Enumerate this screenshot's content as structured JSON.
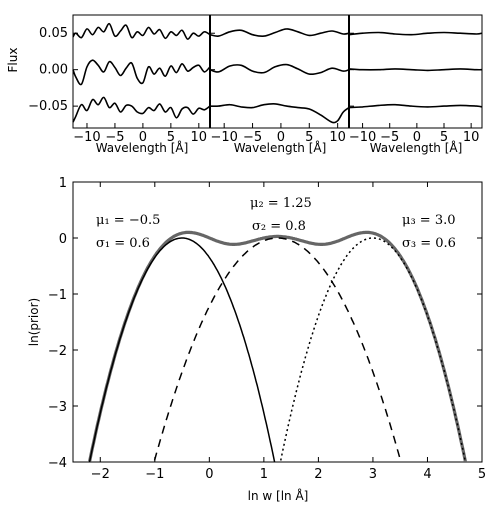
{
  "chart_data": [
    {
      "type": "line",
      "layout": "three-panels-shared-y",
      "ylabel": "Flux",
      "ylim": [
        -0.08,
        0.075
      ],
      "yticks": [
        0.05,
        0.0,
        -0.05
      ],
      "ytick_labels": [
        "0.05",
        "0.00",
        "−0.05"
      ],
      "xlim": [
        -12.5,
        12
      ],
      "xticks": [
        -10,
        -5,
        0,
        5,
        10
      ],
      "xtick_labels": [
        "−10",
        "−5",
        "0",
        "5",
        "10"
      ],
      "xlabel": "Wavelength [Å]",
      "panels": [
        {
          "series": [
            {
              "offset": 0.05,
              "x": [
                -12.5,
                -12,
                -11,
                -10,
                -9,
                -8,
                -7,
                -6,
                -5,
                -4,
                -3,
                -2,
                -1,
                0,
                1,
                2,
                3,
                4,
                5,
                6,
                7,
                8,
                9,
                10,
                11,
                12
              ],
              "y": [
                0.045,
                0.05,
                0.044,
                0.056,
                0.048,
                0.058,
                0.052,
                0.063,
                0.046,
                0.053,
                0.061,
                0.044,
                0.052,
                0.047,
                0.058,
                0.049,
                0.055,
                0.043,
                0.052,
                0.047,
                0.054,
                0.042,
                0.05,
                0.046,
                0.052,
                0.048
              ]
            },
            {
              "offset": 0.0,
              "x": [
                -12.5,
                -12,
                -11,
                -10,
                -9,
                -8,
                -7,
                -6,
                -5,
                -4,
                -3,
                -2,
                -1,
                0,
                1,
                2,
                3,
                4,
                5,
                6,
                7,
                8,
                9,
                10,
                11,
                12
              ],
              "y": [
                0.0,
                -0.01,
                -0.02,
                0.004,
                0.013,
                0.006,
                -0.003,
                0.011,
                0.003,
                -0.008,
                0.002,
                0.009,
                -0.012,
                -0.018,
                0.004,
                -0.006,
                0.002,
                -0.009,
                0.005,
                -0.004,
                0.008,
                -0.002,
                0.003,
                0.006,
                -0.003,
                0.004
              ]
            },
            {
              "offset": -0.05,
              "x": [
                -12.5,
                -12,
                -11,
                -10,
                -9,
                -8,
                -7,
                -6,
                -5,
                -4,
                -3,
                -2,
                -1,
                0,
                1,
                2,
                3,
                4,
                5,
                6,
                7,
                8,
                9,
                10,
                11,
                12
              ],
              "y": [
                -0.072,
                -0.064,
                -0.048,
                -0.056,
                -0.041,
                -0.048,
                -0.038,
                -0.052,
                -0.046,
                -0.058,
                -0.049,
                -0.05,
                -0.058,
                -0.06,
                -0.052,
                -0.056,
                -0.047,
                -0.058,
                -0.052,
                -0.066,
                -0.054,
                -0.052,
                -0.061,
                -0.053,
                -0.055,
                -0.05
              ]
            }
          ]
        },
        {
          "series": [
            {
              "offset": 0.05,
              "x": [
                -12.5,
                -11,
                -9,
                -7,
                -5,
                -3,
                -1,
                1,
                3,
                5,
                7,
                9,
                11,
                12
              ],
              "y": [
                0.048,
                0.046,
                0.052,
                0.054,
                0.048,
                0.046,
                0.051,
                0.056,
                0.052,
                0.047,
                0.05,
                0.053,
                0.049,
                0.05
              ]
            },
            {
              "offset": 0.0,
              "x": [
                -12.5,
                -11,
                -9,
                -7,
                -5,
                -3,
                -1,
                1,
                3,
                5,
                7,
                9,
                11,
                12
              ],
              "y": [
                0.0,
                -0.003,
                0.005,
                0.006,
                -0.002,
                -0.004,
                0.004,
                0.007,
                0.001,
                -0.006,
                -0.004,
                0.002,
                -0.002,
                0.0
              ]
            },
            {
              "offset": -0.05,
              "x": [
                -12.5,
                -11,
                -9,
                -7,
                -5,
                -3,
                -1,
                1,
                3,
                5,
                7,
                9,
                10,
                11,
                12
              ],
              "y": [
                -0.05,
                -0.05,
                -0.048,
                -0.051,
                -0.052,
                -0.048,
                -0.047,
                -0.05,
                -0.052,
                -0.054,
                -0.062,
                -0.072,
                -0.07,
                -0.058,
                -0.052
              ]
            }
          ]
        },
        {
          "series": [
            {
              "offset": 0.05,
              "x": [
                -12.5,
                -10,
                -7,
                -4,
                -1,
                2,
                5,
                8,
                11,
                12
              ],
              "y": [
                0.048,
                0.05,
                0.051,
                0.049,
                0.048,
                0.05,
                0.051,
                0.05,
                0.049,
                0.05
              ]
            },
            {
              "offset": 0.0,
              "x": [
                -12.5,
                -10,
                -7,
                -4,
                -1,
                2,
                5,
                8,
                11,
                12
              ],
              "y": [
                0.001,
                0.0,
                0.0,
                0.001,
                0.0,
                -0.001,
                0.0,
                0.001,
                0.0,
                0.0
              ]
            },
            {
              "offset": -0.05,
              "x": [
                -12.5,
                -10,
                -7,
                -4,
                -1,
                2,
                5,
                8,
                11,
                12
              ],
              "y": [
                -0.052,
                -0.051,
                -0.049,
                -0.048,
                -0.05,
                -0.051,
                -0.05,
                -0.049,
                -0.05,
                -0.051
              ]
            }
          ]
        }
      ]
    },
    {
      "type": "line",
      "xlabel": "ln w [ln Å]",
      "ylabel": "ln(prior)",
      "xlim": [
        -2.5,
        5
      ],
      "ylim": [
        -4,
        1
      ],
      "xticks": [
        -2,
        -1,
        0,
        1,
        2,
        3,
        4,
        5
      ],
      "xtick_labels": [
        "−2",
        "−1",
        "0",
        "1",
        "2",
        "3",
        "4",
        "5"
      ],
      "yticks": [
        1,
        0,
        -1,
        -2,
        -3,
        -4
      ],
      "ytick_labels": [
        "1",
        "0",
        "−1",
        "−2",
        "−3",
        "−4"
      ],
      "components": [
        {
          "mu": -0.5,
          "sigma": 0.6,
          "style": "solid"
        },
        {
          "mu": 1.25,
          "sigma": 0.8,
          "style": "dashed"
        },
        {
          "mu": 3.0,
          "sigma": 0.6,
          "style": "dotted"
        }
      ],
      "envelope_color": "#666666",
      "annotations": [
        {
          "mu_text": "μ₁ = −0.5",
          "sigma_text": "σ₁ = 0.6"
        },
        {
          "mu_text": "μ₂ = 1.25",
          "sigma_text": "σ₂ = 0.8"
        },
        {
          "mu_text": "μ₃ = 3.0",
          "sigma_text": "σ₃ = 0.6"
        }
      ]
    }
  ]
}
